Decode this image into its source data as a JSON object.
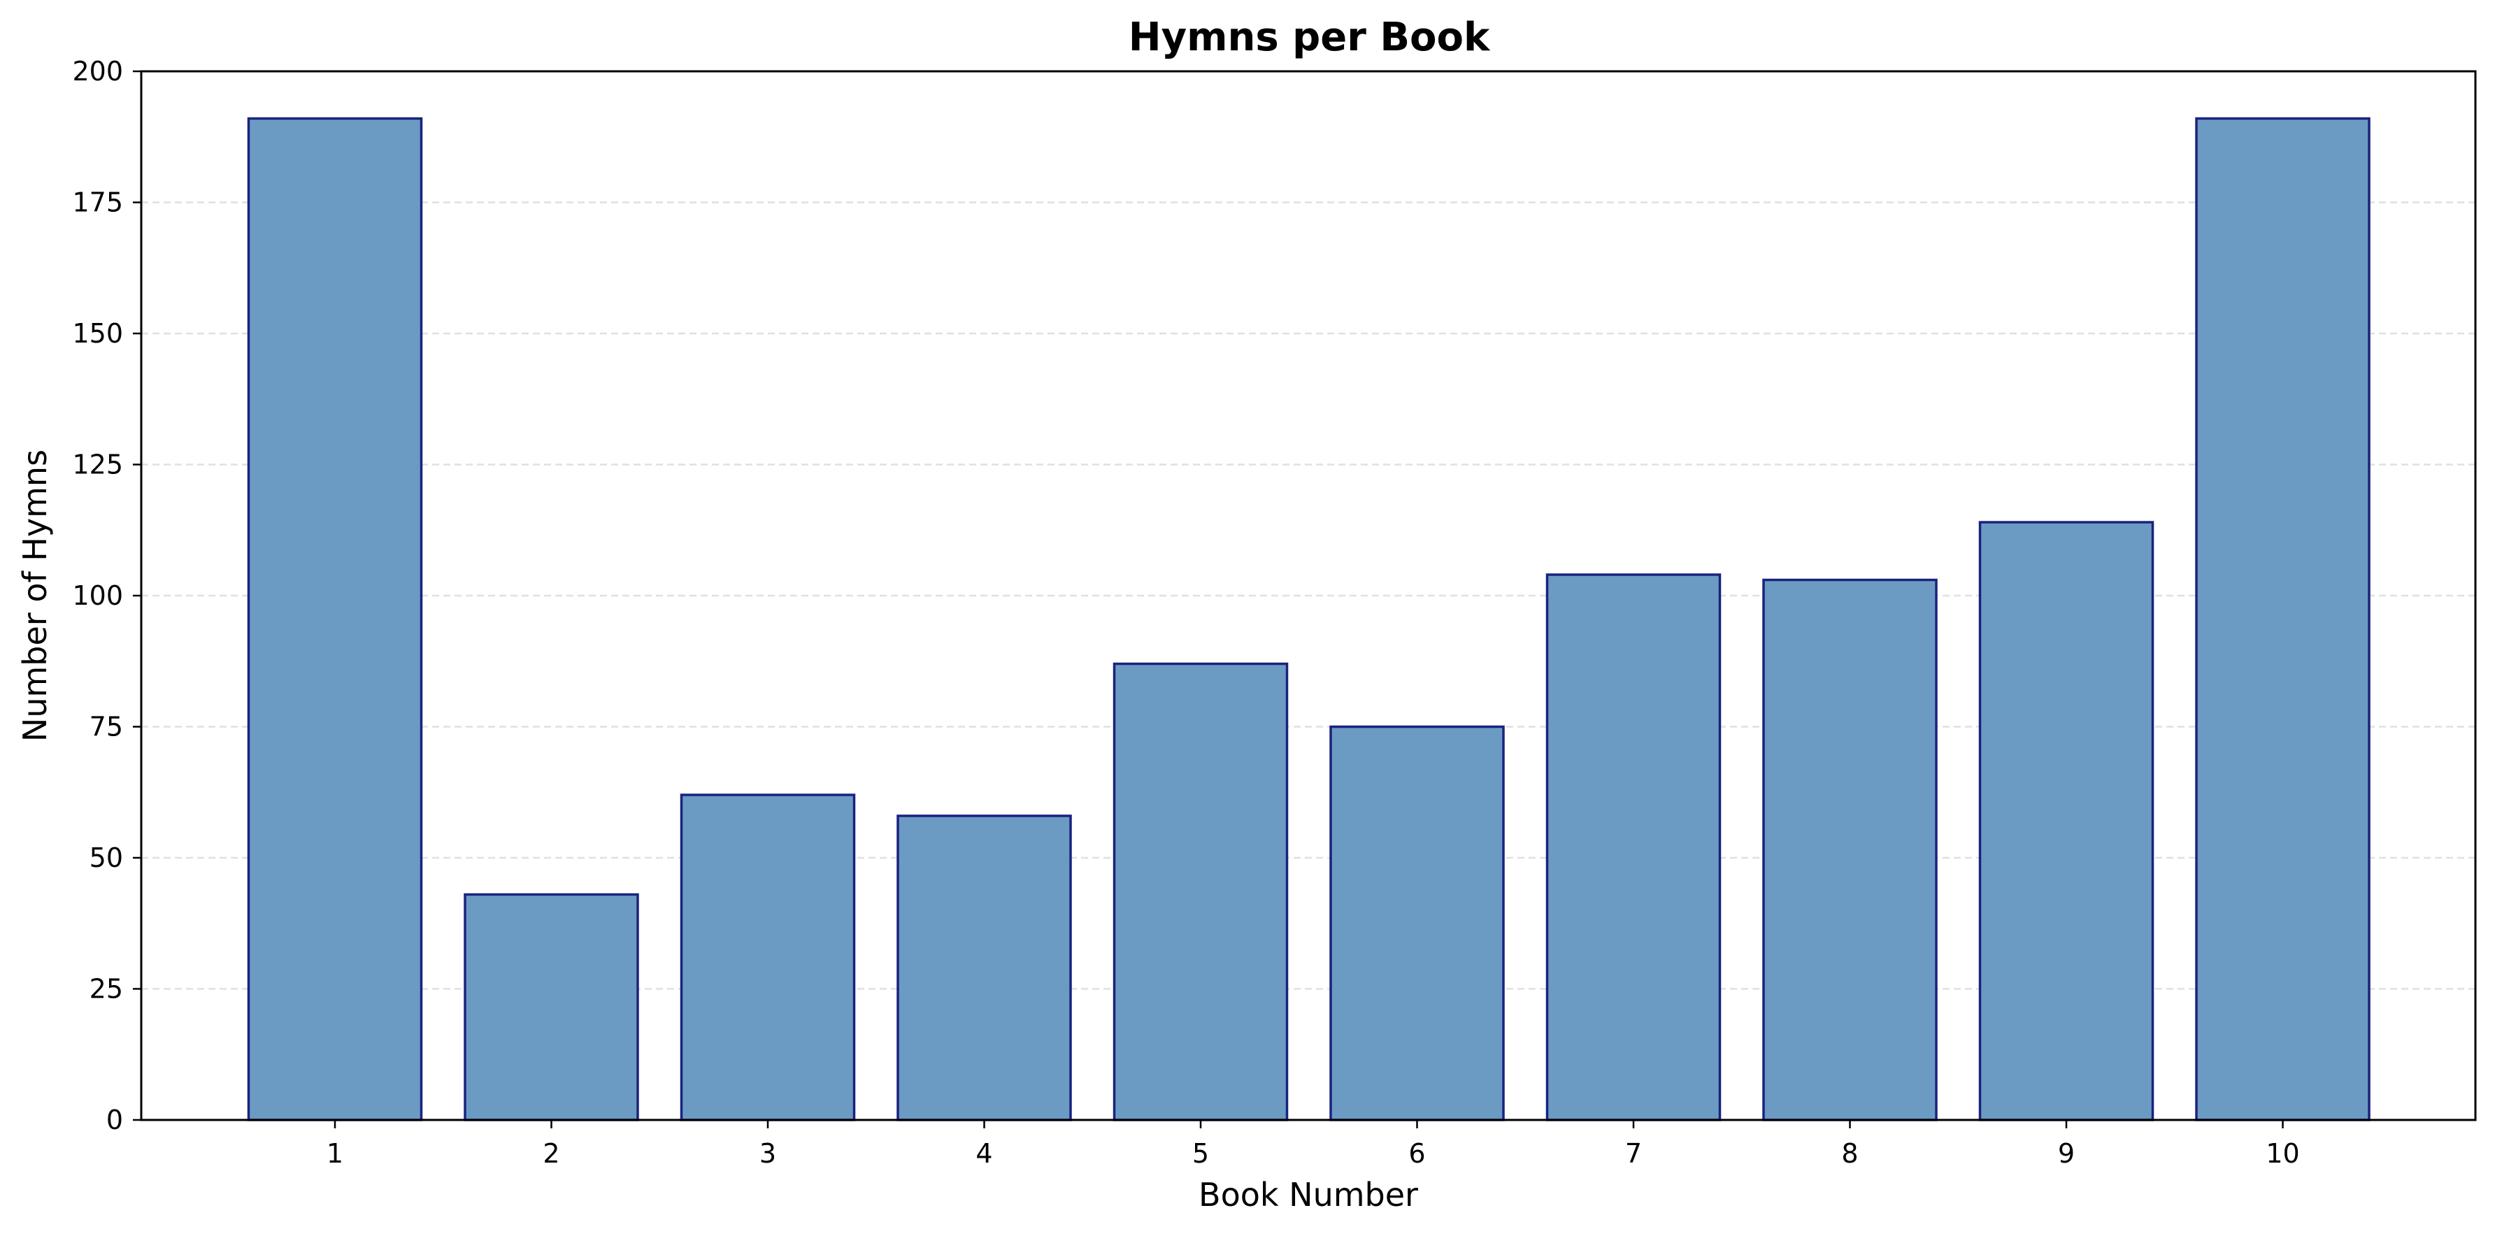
{
  "chart_data": {
    "type": "bar",
    "title": "Hymns per Book",
    "xlabel": "Book Number",
    "ylabel": "Number of Hymns",
    "categories": [
      "1",
      "2",
      "3",
      "4",
      "5",
      "6",
      "7",
      "8",
      "9",
      "10"
    ],
    "values": [
      191,
      43,
      62,
      58,
      87,
      75,
      104,
      103,
      114,
      191
    ],
    "ylim": [
      0,
      200
    ],
    "yticks": [
      0,
      25,
      50,
      75,
      100,
      125,
      150,
      175,
      200
    ],
    "grid": "horizontal, dashed",
    "colors": {
      "bar_fill": "#6b9bc3",
      "bar_edge": "#1a237e",
      "grid": "#e0e0e0",
      "axis": "#000000"
    }
  }
}
